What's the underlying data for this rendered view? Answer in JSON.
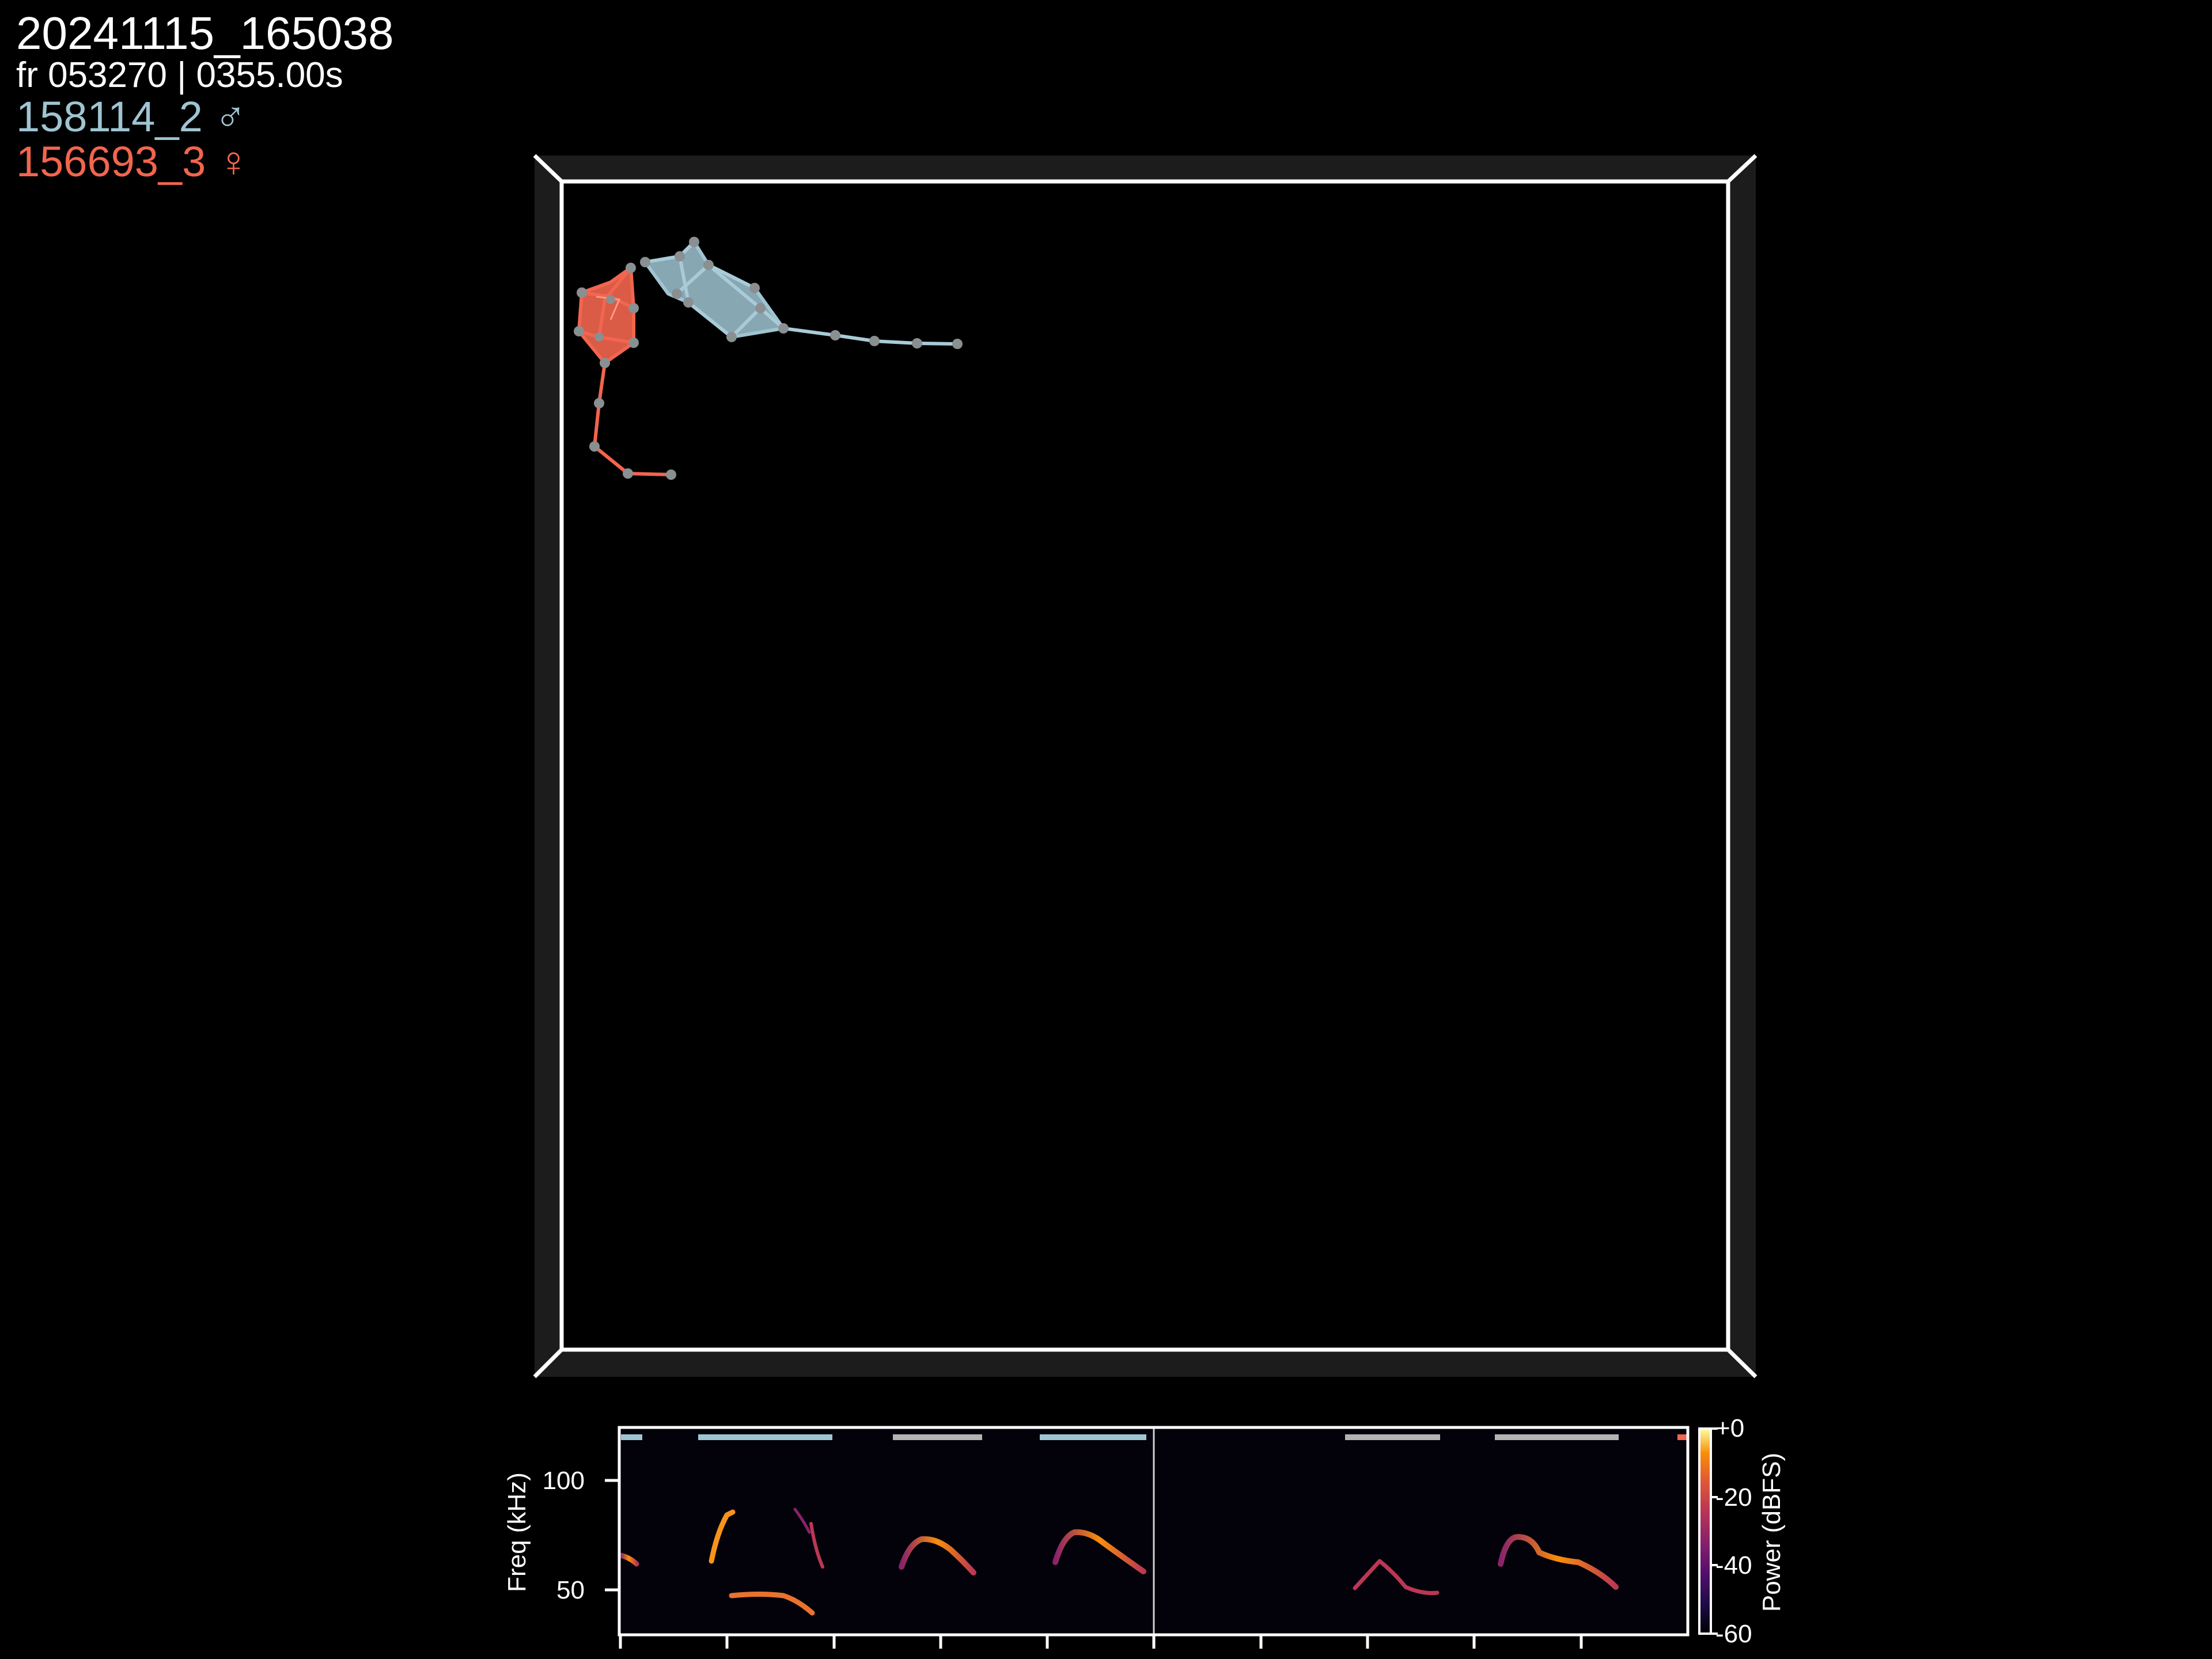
{
  "hud": {
    "session": "20241115_165038",
    "frame_line": "fr 053270 | 0355.00s",
    "subjects": [
      {
        "label": "158114_2 ♂",
        "color": "#9fc4d2"
      },
      {
        "label": "156693_3 ♀",
        "color": "#f2654e"
      }
    ]
  },
  "colors": {
    "background": "#000000",
    "arena_frame": "#ffffff",
    "arena_wall": "#1c1c1c",
    "male": "#9fc4d2",
    "female": "#f2654e",
    "joint": "#8a8f92",
    "inactive_bar": "#b3b3b3"
  },
  "spectrogram": {
    "ylabel": "Freq (kHz)",
    "yticks": [
      "100",
      "50"
    ],
    "colorbar_label": "Power (dBFS)",
    "colorbar_ticks": [
      "+0",
      "-20",
      "-40",
      "-60"
    ],
    "colormap": "inferno"
  }
}
